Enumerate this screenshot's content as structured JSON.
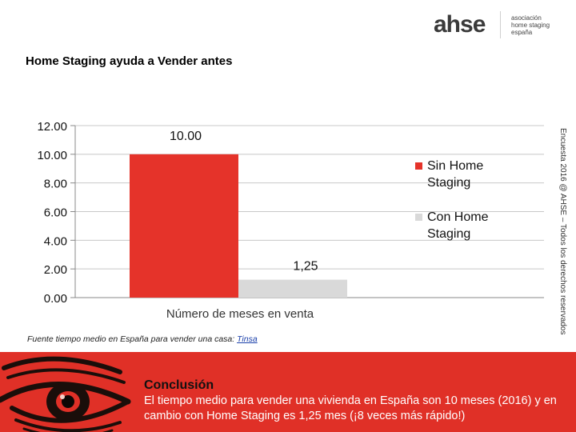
{
  "page": {
    "title": "Home Staging ayuda a Vender antes",
    "logo": {
      "wordmark": "ahse",
      "association_lines": [
        "asociación",
        "home staging",
        "españa"
      ]
    },
    "side_note": "Encuesta 2016 @ AHSE – Todos los derechos reservados",
    "source_prefix": "Fuente tiempo medio en España para vender una casa: ",
    "source_link": "Tinsa",
    "conclusion_title": "Conclusión",
    "conclusion_text": "El tiempo medio para vender una vivienda en España son 10 meses (2016) y en cambio con Home Staging es 1,25 mes (¡8 veces más rápido!)",
    "colors": {
      "accent_red": "#e03027",
      "series_red": "#e5332a",
      "series_grey": "#d9d9d9"
    }
  },
  "chart_data": {
    "type": "bar",
    "categories": [
      "Número de meses en venta"
    ],
    "xlabel": "Número de meses en venta",
    "ylabel": "",
    "ylim": [
      0,
      12
    ],
    "yticks": [
      "0.00",
      "2.00",
      "4.00",
      "6.00",
      "8.00",
      "10.00",
      "12.00"
    ],
    "grid": true,
    "legend": "right",
    "series": [
      {
        "name": "Sin Home Staging",
        "values": [
          10
        ],
        "label": "10.00",
        "color": "#e5332a"
      },
      {
        "name": "Con Home Staging",
        "values": [
          1.25
        ],
        "label": "1,25",
        "color": "#d9d9d9"
      }
    ]
  }
}
